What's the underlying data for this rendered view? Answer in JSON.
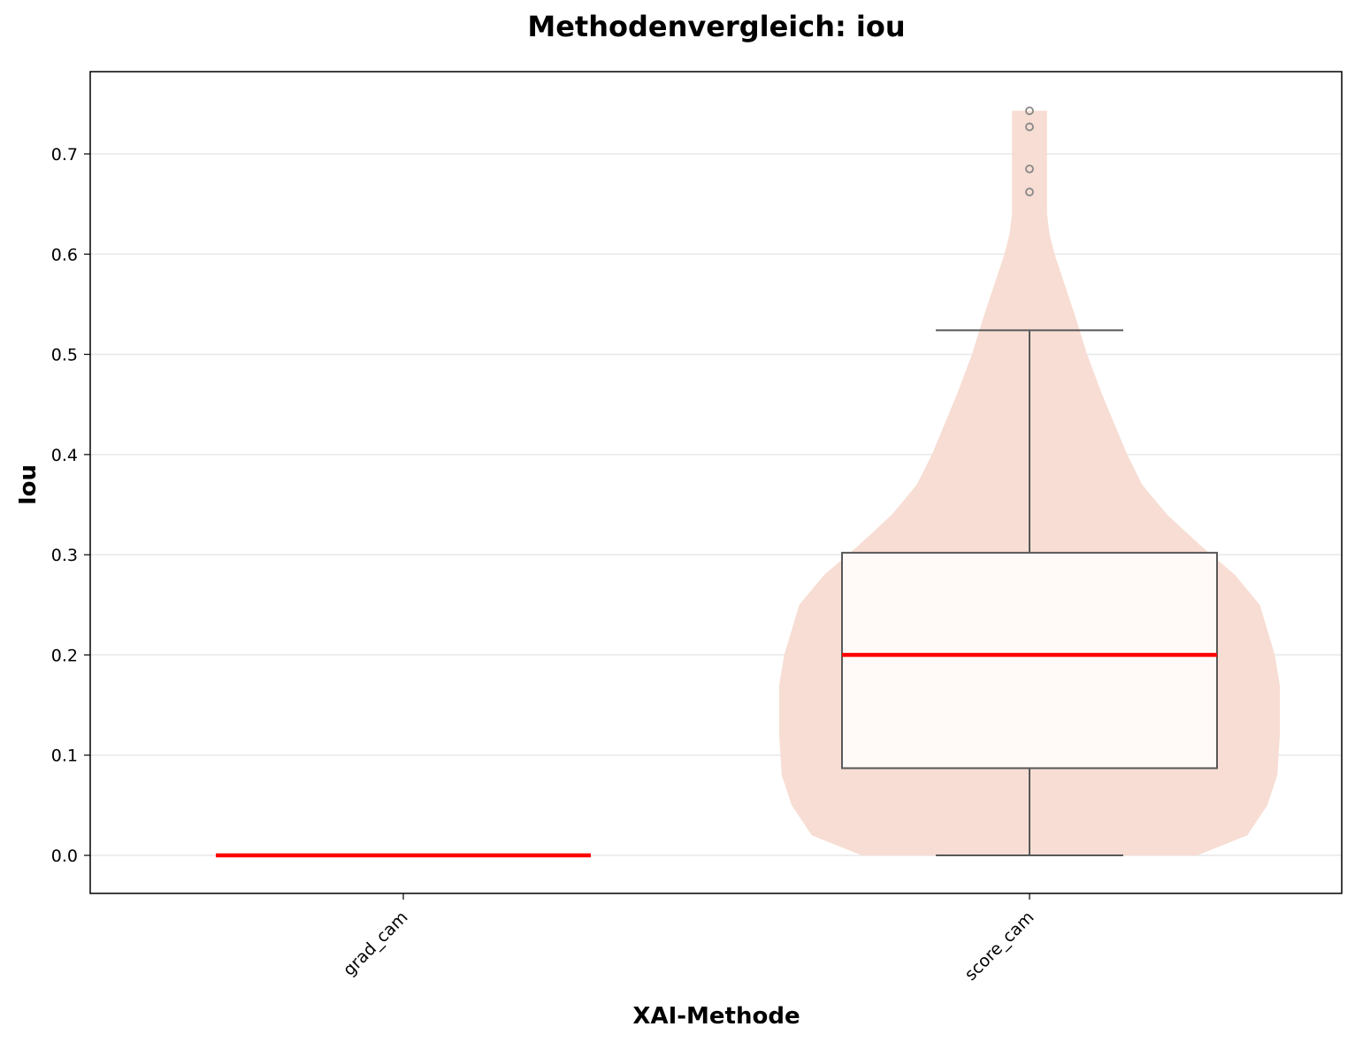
{
  "chart_data": {
    "type": "violin+box",
    "title": "Methodenvergleich: iou",
    "xlabel": "XAI-Methode",
    "ylabel": "Iou",
    "categories": [
      "grad_cam",
      "score_cam"
    ],
    "ylim": [
      -0.037,
      0.78
    ],
    "yticks": [
      "0.0",
      "0.1",
      "0.2",
      "0.3",
      "0.4",
      "0.5",
      "0.6",
      "0.7"
    ],
    "grid": "horizontal",
    "series": [
      {
        "category": "grad_cam",
        "box": {
          "whisker_low": 0.0,
          "q1": 0.0,
          "median": 0.0,
          "q3": 0.0,
          "whisker_high": 0.0
        },
        "outliers": [],
        "violin": null
      },
      {
        "category": "score_cam",
        "box": {
          "whisker_low": 0.0,
          "q1": 0.087,
          "median": 0.2,
          "q3": 0.302,
          "whisker_high": 0.524
        },
        "outliers": [
          0.662,
          0.685,
          0.727,
          0.743
        ],
        "violin": {
          "y": [
            0.0,
            0.02,
            0.05,
            0.08,
            0.12,
            0.17,
            0.2,
            0.25,
            0.28,
            0.31,
            0.34,
            0.37,
            0.4,
            0.43,
            0.46,
            0.5,
            0.54,
            0.57,
            0.6,
            0.62,
            0.64,
            0.66,
            0.68,
            0.7,
            0.72,
            0.743
          ],
          "density": [
            0.67,
            0.87,
            0.95,
            0.99,
            1.0,
            1.0,
            0.98,
            0.92,
            0.82,
            0.68,
            0.55,
            0.45,
            0.39,
            0.34,
            0.29,
            0.23,
            0.18,
            0.14,
            0.1,
            0.08,
            0.07,
            0.07,
            0.07,
            0.07,
            0.07,
            0.07
          ]
        }
      }
    ],
    "colors": {
      "violin": "#f7ddd3",
      "box_fill": "#fffaf8",
      "box_edge": "#595959",
      "median": "#ff0000",
      "grid": "#e8e8e8",
      "outlier": "#888888"
    }
  }
}
